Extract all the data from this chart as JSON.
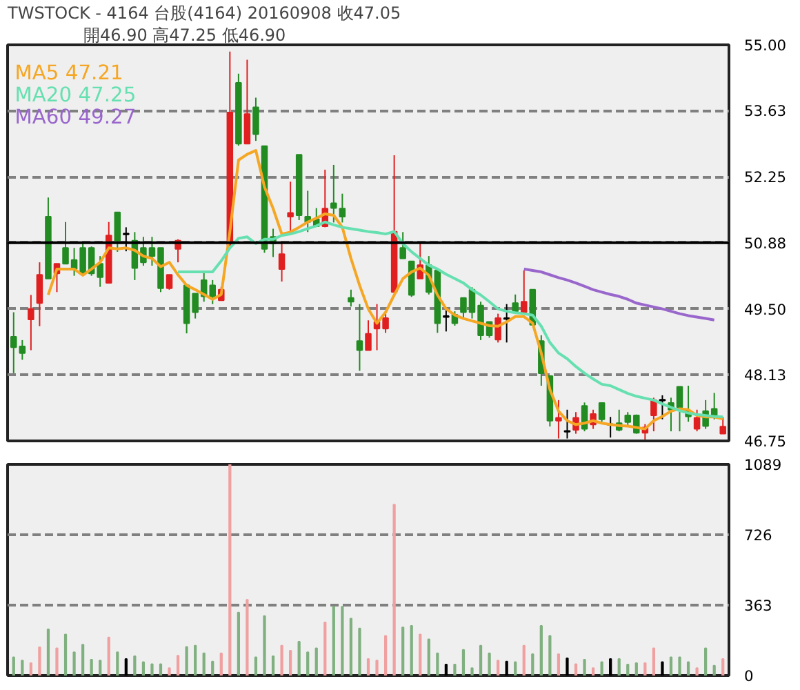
{
  "chart_data": [
    {
      "type": "candlestick",
      "title": "TWSTOCK  -  4164  台股(4164)  20160908    收47.05",
      "subtitle": "開46.90    高47.25    低46.90",
      "categories": [
        null,
        null,
        null,
        null,
        null,
        null,
        null,
        null,
        null,
        null,
        null,
        null,
        null,
        null,
        null,
        null,
        null,
        null,
        null,
        null,
        null,
        null,
        null,
        null,
        null,
        null,
        null,
        null,
        null,
        null,
        null,
        null,
        null,
        null,
        null,
        null,
        null,
        null,
        null,
        null,
        null,
        null,
        null,
        null,
        null,
        null,
        null,
        null,
        null,
        null,
        null,
        null,
        null,
        null,
        null,
        null,
        null,
        null,
        null,
        null,
        null,
        null,
        null,
        null,
        null,
        null,
        null,
        null,
        null,
        null,
        null,
        null,
        null,
        null,
        null,
        null,
        null,
        null,
        null,
        null,
        null,
        null,
        null
      ],
      "ohlc": [
        [
          48.92,
          49.43,
          48.16,
          48.7
        ],
        [
          48.72,
          48.85,
          48.44,
          48.58
        ],
        [
          49.28,
          49.79,
          48.64,
          49.5
        ],
        [
          49.62,
          50.47,
          49.14,
          50.21
        ],
        [
          51.42,
          51.82,
          50.13,
          50.13
        ],
        [
          50.24,
          50.44,
          49.85,
          50.44
        ],
        [
          50.77,
          51.31,
          50.44,
          50.44
        ],
        [
          50.52,
          50.77,
          50.19,
          50.33
        ],
        [
          50.77,
          50.89,
          50.2,
          50.24
        ],
        [
          50.77,
          50.8,
          50.19,
          50.24
        ],
        [
          50.44,
          50.6,
          49.96,
          50.16
        ],
        [
          50.04,
          51.31,
          50.04,
          51.03
        ],
        [
          51.51,
          51.51,
          50.69,
          50.92
        ],
        [
          51.06,
          51.2,
          50.7,
          51.06
        ],
        [
          50.92,
          51.1,
          50.1,
          50.35
        ],
        [
          50.77,
          51.0,
          50.4,
          50.47
        ],
        [
          50.77,
          51.0,
          50.4,
          50.6
        ],
        [
          50.77,
          50.77,
          49.85,
          49.93
        ],
        [
          49.93,
          50.21,
          49.9,
          50.21
        ],
        [
          50.75,
          50.95,
          50.47,
          50.92
        ],
        [
          49.99,
          49.99,
          48.99,
          49.2
        ],
        [
          49.82,
          49.82,
          49.3,
          49.43
        ],
        [
          50.1,
          50.27,
          49.65,
          49.76
        ],
        [
          49.99,
          50.1,
          49.6,
          49.76
        ],
        [
          49.68,
          49.96,
          49.68,
          49.9
        ],
        [
          50.83,
          54.86,
          50.83,
          53.59
        ],
        [
          54.21,
          54.4,
          52.9,
          52.94
        ],
        [
          52.94,
          54.69,
          52.94,
          53.56
        ],
        [
          53.7,
          53.9,
          53.0,
          53.14
        ],
        [
          52.89,
          52.89,
          50.67,
          50.75
        ],
        [
          51.0,
          51.17,
          50.58,
          50.86
        ],
        [
          50.33,
          50.89,
          50.07,
          50.64
        ],
        [
          51.42,
          52.15,
          51.1,
          51.5
        ],
        [
          52.71,
          52.71,
          51.35,
          51.45
        ],
        [
          51.42,
          51.96,
          51.1,
          51.31
        ],
        [
          51.37,
          51.6,
          51.22,
          51.22
        ],
        [
          51.22,
          52.4,
          51.2,
          51.59
        ],
        [
          51.7,
          52.5,
          51.3,
          51.6
        ],
        [
          51.59,
          51.9,
          51.3,
          51.42
        ],
        [
          49.73,
          49.9,
          49.55,
          49.65
        ],
        [
          48.83,
          49.6,
          48.21,
          48.64
        ],
        [
          48.64,
          49.26,
          48.64,
          48.98
        ],
        [
          49.09,
          49.6,
          48.64,
          49.23
        ],
        [
          49.09,
          49.4,
          49.0,
          49.31
        ],
        [
          49.85,
          52.7,
          49.85,
          51.11
        ],
        [
          50.77,
          51.1,
          50.55,
          50.55
        ],
        [
          50.49,
          50.49,
          49.75,
          49.79
        ],
        [
          50.13,
          50.9,
          50.13,
          50.41
        ],
        [
          50.41,
          50.6,
          49.8,
          49.85
        ],
        [
          50.3,
          50.3,
          49.0,
          49.2
        ],
        [
          49.34,
          49.5,
          49.03,
          49.34
        ],
        [
          49.38,
          49.45,
          49.15,
          49.2
        ],
        [
          49.73,
          49.73,
          49.3,
          49.43
        ],
        [
          49.9,
          49.95,
          49.3,
          49.43
        ],
        [
          49.57,
          49.65,
          48.85,
          48.95
        ],
        [
          49.23,
          49.23,
          48.9,
          48.95
        ],
        [
          48.86,
          49.4,
          48.8,
          49.31
        ],
        [
          49.3,
          49.6,
          48.8,
          49.3
        ],
        [
          49.62,
          49.8,
          49.4,
          49.45
        ],
        [
          49.43,
          50.3,
          49.43,
          49.65
        ],
        [
          49.9,
          49.9,
          49.15,
          49.17
        ],
        [
          48.83,
          48.95,
          47.9,
          48.16
        ],
        [
          48.1,
          48.1,
          47.05,
          47.17
        ],
        [
          47.17,
          47.6,
          46.8,
          47.23
        ],
        [
          46.95,
          47.4,
          46.8,
          46.95
        ],
        [
          46.98,
          47.35,
          46.9,
          47.23
        ],
        [
          47.48,
          47.55,
          46.95,
          47.0
        ],
        [
          47.09,
          47.4,
          47.0,
          47.31
        ],
        [
          47.54,
          47.54,
          47.15,
          47.2
        ],
        [
          47.09,
          47.25,
          46.82,
          47.09
        ],
        [
          47.12,
          47.4,
          46.95,
          46.98
        ],
        [
          47.28,
          47.35,
          47.05,
          47.14
        ],
        [
          47.28,
          47.3,
          46.9,
          46.92
        ],
        [
          46.92,
          47.1,
          46.78,
          47.03
        ],
        [
          47.28,
          47.65,
          46.95,
          47.6
        ],
        [
          47.6,
          47.7,
          47.2,
          47.6
        ],
        [
          47.54,
          47.65,
          46.95,
          47.4
        ],
        [
          47.88,
          47.88,
          46.95,
          47.45
        ],
        [
          47.37,
          47.9,
          47.15,
          47.26
        ],
        [
          47.0,
          47.4,
          46.95,
          47.23
        ],
        [
          47.37,
          47.6,
          47.0,
          47.06
        ],
        [
          47.42,
          47.75,
          47.2,
          47.26
        ],
        [
          46.9,
          47.25,
          46.9,
          47.05
        ]
      ],
      "colors": [
        "#228b22",
        "#228b22",
        "#e02020",
        "#e02020",
        "#228b22",
        "#e02020",
        "#228b22",
        "#228b22",
        "#228b22",
        "#228b22",
        "#228b22",
        "#e02020",
        "#228b22",
        "#000000",
        "#228b22",
        "#228b22",
        "#228b22",
        "#228b22",
        "#e02020",
        "#e02020",
        "#228b22",
        "#228b22",
        "#228b22",
        "#228b22",
        "#e02020",
        "#e02020",
        "#228b22",
        "#e02020",
        "#228b22",
        "#228b22",
        "#228b22",
        "#e02020",
        "#e02020",
        "#228b22",
        "#228b22",
        "#228b22",
        "#e02020",
        "#228b22",
        "#228b22",
        "#228b22",
        "#228b22",
        "#e02020",
        "#e02020",
        "#e02020",
        "#e02020",
        "#228b22",
        "#228b22",
        "#e02020",
        "#228b22",
        "#228b22",
        "#000000",
        "#228b22",
        "#228b22",
        "#228b22",
        "#228b22",
        "#228b22",
        "#e02020",
        "#000000",
        "#228b22",
        "#e02020",
        "#228b22",
        "#228b22",
        "#228b22",
        "#e02020",
        "#000000",
        "#e02020",
        "#228b22",
        "#e02020",
        "#228b22",
        "#000000",
        "#228b22",
        "#228b22",
        "#228b22",
        "#e02020",
        "#e02020",
        "#000000",
        "#228b22",
        "#228b22",
        "#228b22",
        "#e02020",
        "#228b22",
        "#228b22",
        "#e02020"
      ],
      "series": [
        {
          "name": "MA5 47.21",
          "type": "line",
          "color": "#f5a623",
          "values": [
            null,
            null,
            null,
            null,
            49.79,
            50.33,
            50.33,
            50.33,
            50.2,
            50.33,
            50.47,
            50.77,
            50.75,
            50.77,
            50.72,
            50.6,
            50.55,
            50.38,
            50.47,
            50.21,
            49.99,
            49.9,
            49.8,
            49.7,
            49.8,
            51.11,
            52.6,
            52.72,
            52.8,
            52.04,
            51.59,
            51.06,
            51.1,
            51.2,
            51.31,
            51.39,
            51.48,
            51.45,
            51.2,
            50.55,
            49.99,
            49.5,
            49.2,
            49.43,
            49.79,
            50.13,
            50.27,
            50.35,
            50.2,
            49.79,
            49.5,
            49.37,
            49.3,
            49.25,
            49.2,
            49.15,
            49.14,
            49.23,
            49.34,
            49.34,
            49.2,
            48.58,
            47.82,
            47.37,
            47.17,
            47.09,
            47.12,
            47.17,
            47.12,
            47.09,
            47.07,
            47.06,
            47.03,
            47.0,
            47.17,
            47.26,
            47.37,
            47.42,
            47.4,
            47.28,
            47.25,
            47.25,
            47.21
          ]
        },
        {
          "name": "MA20 47.25",
          "type": "line",
          "color": "#66e0b0",
          "values": [
            null,
            null,
            null,
            null,
            null,
            null,
            null,
            null,
            null,
            null,
            null,
            null,
            null,
            null,
            null,
            null,
            null,
            null,
            null,
            50.27,
            50.27,
            50.27,
            50.27,
            50.27,
            50.5,
            50.77,
            50.97,
            51.0,
            50.86,
            50.95,
            50.95,
            51.03,
            51.06,
            51.11,
            51.17,
            51.23,
            51.31,
            51.25,
            51.2,
            51.17,
            51.14,
            51.11,
            51.09,
            51.06,
            51.11,
            50.86,
            50.69,
            50.55,
            50.41,
            50.33,
            50.22,
            50.13,
            50.04,
            49.9,
            49.79,
            49.65,
            49.5,
            49.45,
            49.42,
            49.4,
            49.37,
            49.14,
            48.8,
            48.58,
            48.46,
            48.3,
            48.16,
            48.04,
            47.93,
            47.9,
            47.82,
            47.74,
            47.68,
            47.64,
            47.6,
            47.52,
            47.45,
            47.38,
            47.33,
            47.3,
            47.28,
            47.26,
            47.25
          ]
        },
        {
          "name": "MA60 49.27",
          "type": "line",
          "color": "#9966cc",
          "values": [
            null,
            null,
            null,
            null,
            null,
            null,
            null,
            null,
            null,
            null,
            null,
            null,
            null,
            null,
            null,
            null,
            null,
            null,
            null,
            null,
            null,
            null,
            null,
            null,
            null,
            null,
            null,
            null,
            null,
            null,
            null,
            null,
            null,
            null,
            null,
            null,
            null,
            null,
            null,
            null,
            null,
            null,
            null,
            null,
            null,
            null,
            null,
            null,
            null,
            null,
            null,
            null,
            null,
            null,
            null,
            null,
            null,
            null,
            null,
            50.33,
            50.3,
            50.27,
            50.21,
            50.15,
            50.1,
            50.04,
            49.97,
            49.9,
            49.85,
            49.8,
            49.76,
            49.7,
            49.62,
            49.58,
            49.54,
            49.5,
            49.45,
            49.4,
            49.36,
            49.33,
            49.3,
            49.27,
            null
          ]
        }
      ],
      "ylim": [
        46.75,
        55.0
      ],
      "yticks": [
        {
          "value": 46.75,
          "label": "46.75"
        },
        {
          "value": 48.13,
          "label": "48.13"
        },
        {
          "value": 49.5,
          "label": "49.50"
        },
        {
          "value": 50.88,
          "label": "50.88"
        },
        {
          "value": 52.25,
          "label": "52.25"
        },
        {
          "value": 53.63,
          "label": "53.63"
        },
        {
          "value": 55.0,
          "label": "55.00"
        }
      ],
      "ref_lines": [
        {
          "axis": "y",
          "value": 50.88,
          "color": "#000000"
        }
      ],
      "grid": "y",
      "tick_labels": "y"
    },
    {
      "type": "bar",
      "categories": [
        null,
        null,
        null,
        null,
        null,
        null,
        null,
        null,
        null,
        null,
        null,
        null,
        null,
        null,
        null,
        null,
        null,
        null,
        null,
        null,
        null,
        null,
        null,
        null,
        null,
        null,
        null,
        null,
        null,
        null,
        null,
        null,
        null,
        null,
        null,
        null,
        null,
        null,
        null,
        null,
        null,
        null,
        null,
        null,
        null,
        null,
        null,
        null,
        null,
        null,
        null,
        null,
        null,
        null,
        null,
        null,
        null,
        null,
        null,
        null,
        null,
        null,
        null,
        null,
        null,
        null,
        null,
        null,
        null,
        null,
        null,
        null,
        null,
        null,
        null,
        null,
        null,
        null,
        null,
        null,
        null,
        null,
        null
      ],
      "values": [
        94,
        77,
        64,
        146,
        238,
        141,
        212,
        120,
        159,
        82,
        77,
        197,
        120,
        85,
        100,
        69,
        59,
        59,
        38,
        102,
        148,
        154,
        115,
        72,
        115,
        1089,
        325,
        391,
        94,
        307,
        100,
        154,
        128,
        174,
        120,
        141,
        274,
        355,
        355,
        294,
        243,
        85,
        77,
        205,
        882,
        248,
        256,
        212,
        187,
        115,
        57,
        57,
        133,
        38,
        154,
        115,
        77,
        72,
        69,
        154,
        110,
        256,
        205,
        110,
        89,
        59,
        82,
        38,
        69,
        85,
        85,
        57,
        64,
        64,
        141,
        69,
        94,
        94,
        69,
        38,
        141,
        51,
        85
      ],
      "colors": [
        "#80b080",
        "#80b080",
        "#f0a0a0",
        "#f0a0a0",
        "#80b080",
        "#f0a0a0",
        "#80b080",
        "#80b080",
        "#80b080",
        "#80b080",
        "#80b080",
        "#f0a0a0",
        "#80b080",
        "#000000",
        "#80b080",
        "#80b080",
        "#80b080",
        "#80b080",
        "#f0a0a0",
        "#f0a0a0",
        "#80b080",
        "#80b080",
        "#80b080",
        "#80b080",
        "#f0a0a0",
        "#f0a0a0",
        "#80b080",
        "#f0a0a0",
        "#80b080",
        "#80b080",
        "#80b080",
        "#f0a0a0",
        "#f0a0a0",
        "#80b080",
        "#80b080",
        "#80b080",
        "#f0a0a0",
        "#80b080",
        "#80b080",
        "#80b080",
        "#80b080",
        "#f0a0a0",
        "#f0a0a0",
        "#f0a0a0",
        "#f0a0a0",
        "#80b080",
        "#80b080",
        "#f0a0a0",
        "#80b080",
        "#80b080",
        "#000000",
        "#80b080",
        "#80b080",
        "#80b080",
        "#80b080",
        "#80b080",
        "#f0a0a0",
        "#000000",
        "#80b080",
        "#f0a0a0",
        "#80b080",
        "#80b080",
        "#80b080",
        "#f0a0a0",
        "#000000",
        "#f0a0a0",
        "#80b080",
        "#f0a0a0",
        "#80b080",
        "#000000",
        "#80b080",
        "#80b080",
        "#80b080",
        "#f0a0a0",
        "#f0a0a0",
        "#000000",
        "#80b080",
        "#80b080",
        "#80b080",
        "#f0a0a0",
        "#80b080",
        "#80b080",
        "#f0a0a0"
      ],
      "ylim": [
        0,
        1089
      ],
      "yticks": [
        0,
        363,
        726,
        1089
      ],
      "grid": "y",
      "tick_labels": "y"
    }
  ]
}
